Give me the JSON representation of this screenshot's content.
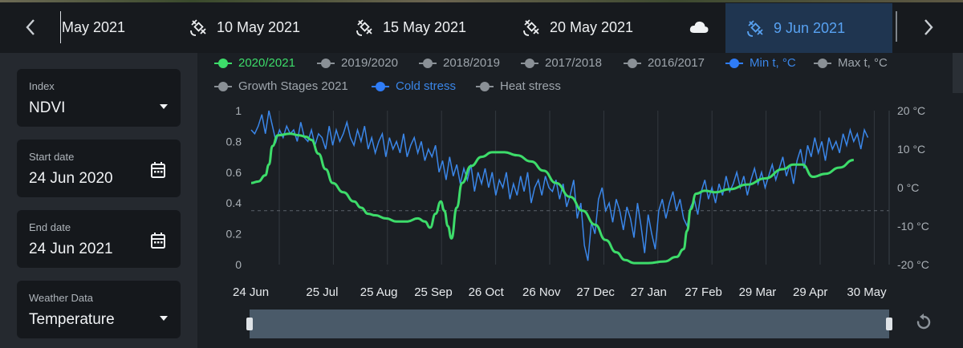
{
  "topbar": {
    "dates": [
      {
        "label": "May 2021",
        "icon": "none"
      },
      {
        "label": "10 May 2021",
        "icon": "satellite-icon"
      },
      {
        "label": "15 May 2021",
        "icon": "satellite-icon"
      },
      {
        "label": "20 May 2021",
        "icon": "satellite-icon"
      },
      {
        "label": "",
        "icon": "cloud-icon"
      },
      {
        "label": "9 Jun 2021",
        "icon": "satellite-icon",
        "active": true
      }
    ],
    "prev_icon": "chevron-left-icon",
    "next_icon": "chevron-right-icon"
  },
  "sidebar": {
    "index": {
      "label": "Index",
      "value": "NDVI"
    },
    "start_date": {
      "label": "Start date",
      "value": "24 Jun 2020"
    },
    "end_date": {
      "label": "End date",
      "value": "24 Jun 2021"
    },
    "weather": {
      "label": "Weather Data",
      "value": "Temperature"
    }
  },
  "legend": [
    {
      "label": "2020/2021",
      "color": "#3ddc6a",
      "active": true
    },
    {
      "label": "2019/2020",
      "color": "#8a9096"
    },
    {
      "label": "2018/2019",
      "color": "#8a9096"
    },
    {
      "label": "2017/2018",
      "color": "#8a9096"
    },
    {
      "label": "2016/2017",
      "color": "#8a9096"
    },
    {
      "label": "Min t, °C",
      "color": "#2f7cf6",
      "active": true
    },
    {
      "label": "Max t, °C",
      "color": "#8a9096"
    },
    {
      "label": "Growth Stages 2021",
      "color": "#8a9096"
    },
    {
      "label": "Cold stress",
      "color": "#2f7cf6",
      "active": true
    },
    {
      "label": "Heat stress",
      "color": "#8a9096"
    }
  ],
  "colors": {
    "ndvi": "#3ddc6a",
    "temp": "#3a86e8",
    "accent": "#58a2f2"
  },
  "chart_data": {
    "type": "line",
    "x_ticks": [
      "24 Jun",
      "25 Jul",
      "25 Aug",
      "25 Sep",
      "26 Oct",
      "26 Nov",
      "27 Dec",
      "27 Jan",
      "27 Feb",
      "29 Mar",
      "29 Apr",
      "30 May"
    ],
    "y_left_ticks": [
      "1",
      "0.8",
      "0.6",
      "0.4",
      "0.2",
      "0"
    ],
    "y_right_ticks": [
      "20 °C",
      "10 °C",
      "0 °C",
      "-10 °C",
      "-20 °C"
    ],
    "ylim_left": [
      0,
      1
    ],
    "ylim_right": [
      -20,
      20
    ],
    "xlim_days": [
      0,
      360
    ],
    "cold_stress_threshold_c": -6,
    "series": [
      {
        "name": "2020/2021",
        "axis": "left",
        "points": [
          [
            0,
            0.53
          ],
          [
            4,
            0.54
          ],
          [
            8,
            0.58
          ],
          [
            10,
            0.65
          ],
          [
            12,
            0.77
          ],
          [
            15,
            0.84
          ],
          [
            22,
            0.85
          ],
          [
            27,
            0.84
          ],
          [
            31,
            0.83
          ],
          [
            34,
            0.81
          ],
          [
            38,
            0.72
          ],
          [
            42,
            0.62
          ],
          [
            46,
            0.53
          ],
          [
            52,
            0.47
          ],
          [
            58,
            0.41
          ],
          [
            62,
            0.37
          ],
          [
            66,
            0.33
          ],
          [
            70,
            0.32
          ],
          [
            76,
            0.3
          ],
          [
            82,
            0.28
          ],
          [
            88,
            0.28
          ],
          [
            94,
            0.3
          ],
          [
            98,
            0.28
          ],
          [
            101,
            0.24
          ],
          [
            104,
            0.33
          ],
          [
            107,
            0.41
          ],
          [
            109,
            0.35
          ],
          [
            111,
            0.25
          ],
          [
            113,
            0.17
          ],
          [
            116,
            0.37
          ],
          [
            119,
            0.53
          ],
          [
            124,
            0.64
          ],
          [
            130,
            0.7
          ],
          [
            136,
            0.73
          ],
          [
            143,
            0.73
          ],
          [
            150,
            0.71
          ],
          [
            158,
            0.67
          ],
          [
            165,
            0.61
          ],
          [
            172,
            0.53
          ],
          [
            180,
            0.44
          ],
          [
            187,
            0.35
          ],
          [
            194,
            0.26
          ],
          [
            200,
            0.16
          ],
          [
            206,
            0.08
          ],
          [
            211,
            0.03
          ],
          [
            216,
            0.01
          ],
          [
            224,
            0.01
          ],
          [
            233,
            0.02
          ],
          [
            240,
            0.05
          ],
          [
            244,
            0.1
          ],
          [
            246,
            0.22
          ],
          [
            248,
            0.36
          ],
          [
            251,
            0.46
          ],
          [
            256,
            0.48
          ],
          [
            262,
            0.47
          ],
          [
            270,
            0.49
          ],
          [
            280,
            0.52
          ],
          [
            290,
            0.56
          ],
          [
            300,
            0.62
          ],
          [
            306,
            0.65
          ],
          [
            311,
            0.65
          ],
          [
            317,
            0.57
          ],
          [
            324,
            0.59
          ],
          [
            332,
            0.63
          ],
          [
            340,
            0.68
          ]
        ]
      },
      {
        "name": "Min t, °C",
        "axis": "right",
        "points": [
          [
            0,
            15
          ],
          [
            2,
            14
          ],
          [
            4,
            16
          ],
          [
            6,
            19
          ],
          [
            8,
            14
          ],
          [
            10,
            20
          ],
          [
            12,
            16
          ],
          [
            14,
            12
          ],
          [
            16,
            15
          ],
          [
            18,
            13
          ],
          [
            20,
            16
          ],
          [
            22,
            14
          ],
          [
            24,
            15
          ],
          [
            26,
            12
          ],
          [
            28,
            17
          ],
          [
            30,
            13
          ],
          [
            32,
            12
          ],
          [
            34,
            15
          ],
          [
            36,
            11
          ],
          [
            38,
            14
          ],
          [
            40,
            13
          ],
          [
            42,
            10
          ],
          [
            44,
            16
          ],
          [
            46,
            11
          ],
          [
            48,
            15
          ],
          [
            50,
            12
          ],
          [
            52,
            14
          ],
          [
            54,
            17
          ],
          [
            56,
            13
          ],
          [
            58,
            11
          ],
          [
            60,
            15
          ],
          [
            62,
            12
          ],
          [
            64,
            16
          ],
          [
            66,
            10
          ],
          [
            68,
            13
          ],
          [
            70,
            9
          ],
          [
            72,
            12
          ],
          [
            74,
            14
          ],
          [
            76,
            8
          ],
          [
            78,
            13
          ],
          [
            80,
            10
          ],
          [
            82,
            12
          ],
          [
            84,
            9
          ],
          [
            86,
            14
          ],
          [
            88,
            8
          ],
          [
            90,
            11
          ],
          [
            92,
            13
          ],
          [
            94,
            9
          ],
          [
            96,
            12
          ],
          [
            98,
            7
          ],
          [
            100,
            10
          ],
          [
            102,
            8
          ],
          [
            104,
            11
          ],
          [
            106,
            4
          ],
          [
            108,
            7
          ],
          [
            110,
            2
          ],
          [
            112,
            8
          ],
          [
            114,
            3
          ],
          [
            116,
            6
          ],
          [
            118,
            1
          ],
          [
            120,
            5
          ],
          [
            122,
            2
          ],
          [
            124,
            6
          ],
          [
            126,
            -1
          ],
          [
            128,
            4
          ],
          [
            130,
            1
          ],
          [
            132,
            5
          ],
          [
            134,
            0
          ],
          [
            136,
            4
          ],
          [
            138,
            -2
          ],
          [
            140,
            2
          ],
          [
            142,
            0
          ],
          [
            144,
            4
          ],
          [
            146,
            -3
          ],
          [
            148,
            1
          ],
          [
            150,
            -2
          ],
          [
            152,
            3
          ],
          [
            154,
            -1
          ],
          [
            156,
            4
          ],
          [
            158,
            -4
          ],
          [
            160,
            0
          ],
          [
            162,
            2
          ],
          [
            164,
            -2
          ],
          [
            166,
            3
          ],
          [
            168,
            0
          ],
          [
            170,
            -1
          ],
          [
            172,
            2
          ],
          [
            174,
            -3
          ],
          [
            176,
            1
          ],
          [
            178,
            -5
          ],
          [
            180,
            -2
          ],
          [
            182,
            2
          ],
          [
            184,
            -8
          ],
          [
            186,
            -4
          ],
          [
            188,
            -15
          ],
          [
            190,
            -19
          ],
          [
            192,
            -9
          ],
          [
            194,
            -12
          ],
          [
            196,
            -3
          ],
          [
            198,
            0
          ],
          [
            200,
            -6
          ],
          [
            202,
            -4
          ],
          [
            204,
            -9
          ],
          [
            206,
            -3
          ],
          [
            208,
            -6
          ],
          [
            210,
            -11
          ],
          [
            212,
            -5
          ],
          [
            214,
            -8
          ],
          [
            216,
            -13
          ],
          [
            218,
            -4
          ],
          [
            220,
            -10
          ],
          [
            222,
            -17
          ],
          [
            224,
            -7
          ],
          [
            226,
            -12
          ],
          [
            228,
            -16
          ],
          [
            230,
            -6
          ],
          [
            232,
            -3
          ],
          [
            234,
            -8
          ],
          [
            236,
            -4
          ],
          [
            238,
            -1
          ],
          [
            240,
            -6
          ],
          [
            242,
            -3
          ],
          [
            244,
            -8
          ],
          [
            246,
            -10
          ],
          [
            248,
            -5
          ],
          [
            250,
            -3
          ],
          [
            252,
            -7
          ],
          [
            254,
            -1
          ],
          [
            256,
            2
          ],
          [
            258,
            -3
          ],
          [
            260,
            0
          ],
          [
            262,
            -4
          ],
          [
            264,
            1
          ],
          [
            266,
            -2
          ],
          [
            268,
            3
          ],
          [
            270,
            -1
          ],
          [
            272,
            1
          ],
          [
            274,
            4
          ],
          [
            276,
            0
          ],
          [
            278,
            3
          ],
          [
            280,
            -2
          ],
          [
            282,
            2
          ],
          [
            284,
            5
          ],
          [
            286,
            1
          ],
          [
            288,
            4
          ],
          [
            290,
            0
          ],
          [
            292,
            3
          ],
          [
            294,
            6
          ],
          [
            296,
            2
          ],
          [
            298,
            5
          ],
          [
            300,
            8
          ],
          [
            302,
            3
          ],
          [
            304,
            6
          ],
          [
            306,
            1
          ],
          [
            308,
            7
          ],
          [
            310,
            10
          ],
          [
            312,
            5
          ],
          [
            314,
            11
          ],
          [
            316,
            8
          ],
          [
            318,
            13
          ],
          [
            320,
            9
          ],
          [
            322,
            12
          ],
          [
            324,
            7
          ],
          [
            326,
            13
          ],
          [
            328,
            10
          ],
          [
            330,
            12
          ],
          [
            332,
            9
          ],
          [
            334,
            14
          ],
          [
            336,
            11
          ],
          [
            338,
            15
          ],
          [
            340,
            12
          ],
          [
            342,
            14
          ],
          [
            344,
            10
          ],
          [
            346,
            15
          ],
          [
            348,
            13
          ]
        ]
      }
    ]
  }
}
